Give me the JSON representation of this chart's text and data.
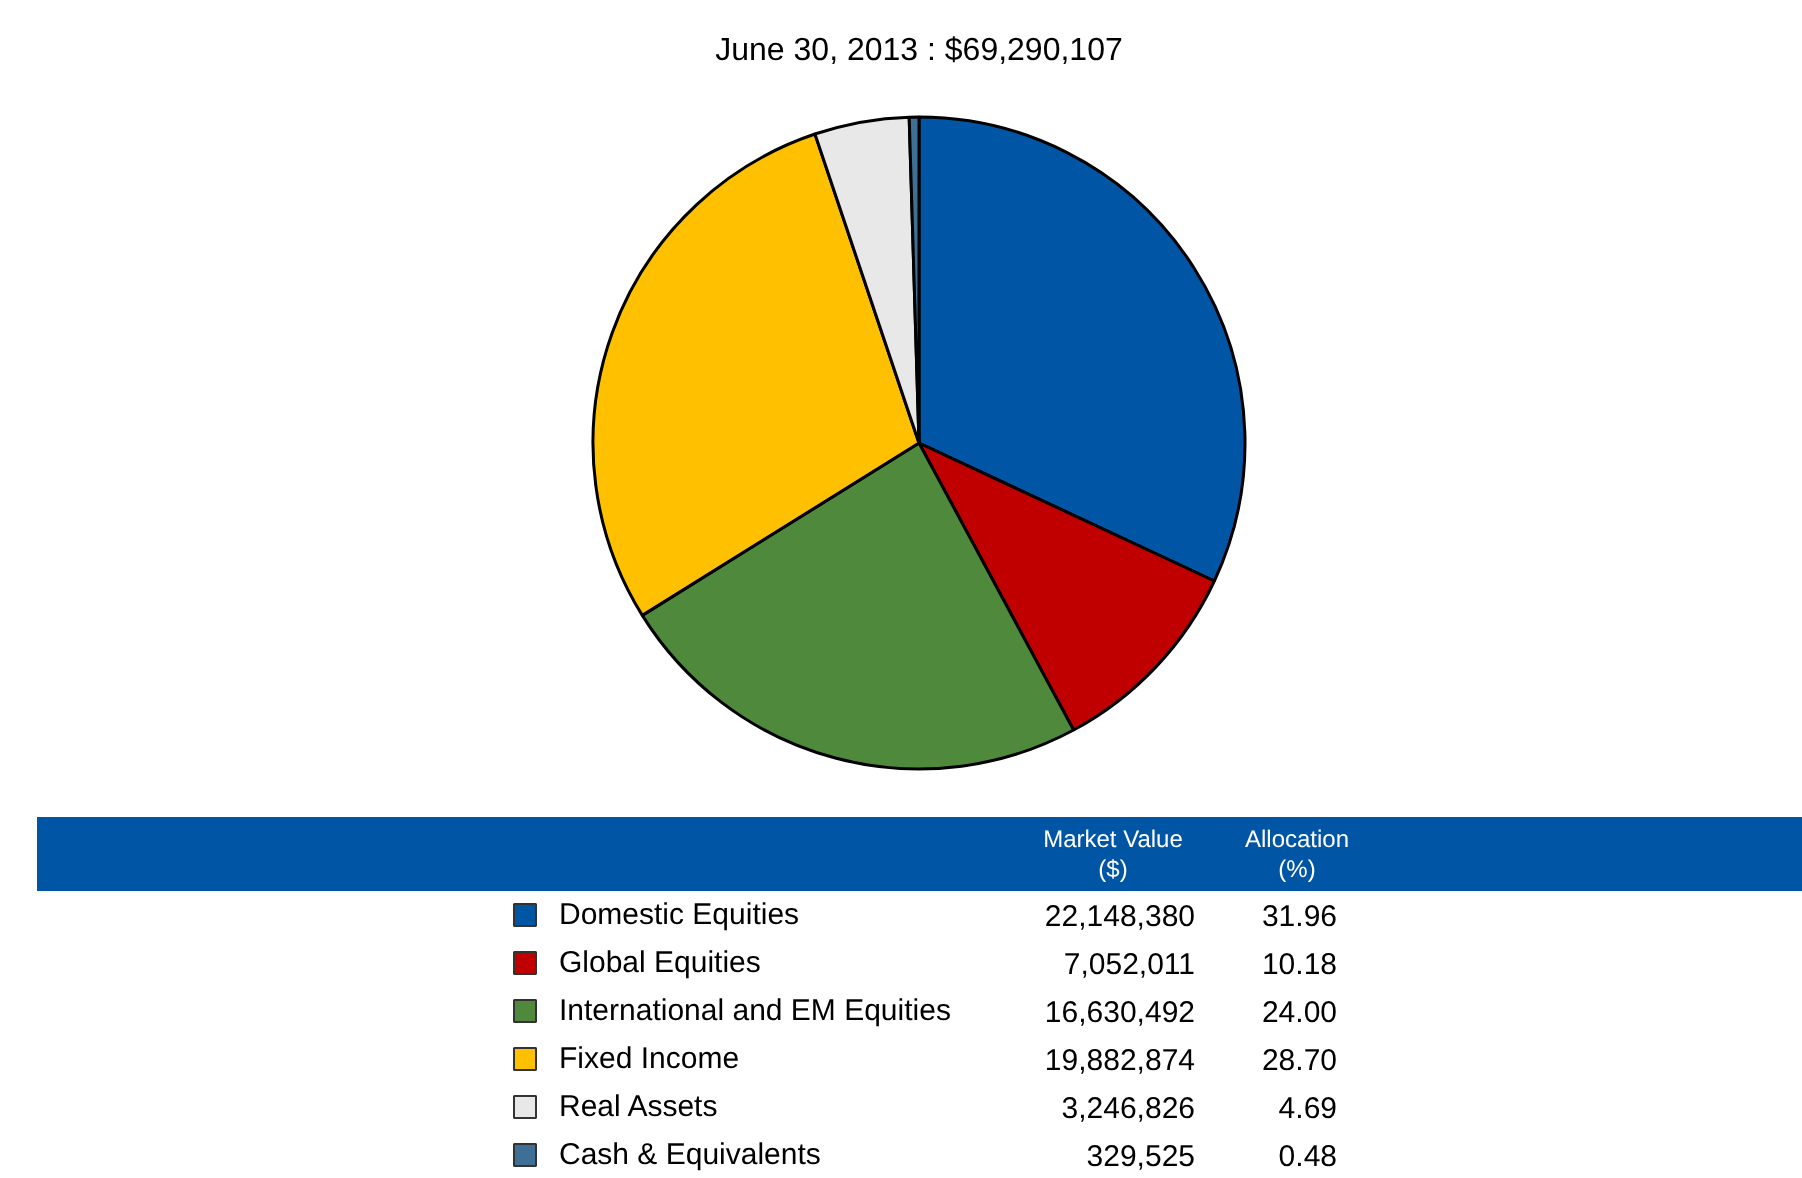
{
  "chart_data": {
    "type": "pie",
    "title": "June 30, 2013 : $69,290,107",
    "categories": [
      "Domestic Equities",
      "Global Equities",
      "International and EM Equities",
      "Fixed Income",
      "Real Assets",
      "Cash & Equivalents"
    ],
    "colors": [
      "#0055a5",
      "#c00000",
      "#4f8a3c",
      "#ffc000",
      "#e8e8e8",
      "#3f6f94"
    ],
    "values": [
      31.96,
      10.18,
      24.0,
      28.7,
      4.69,
      0.48
    ],
    "value_labels": [
      "31.96",
      "10.18",
      "24.00",
      "28.70",
      "4.69",
      "0.48"
    ],
    "annotations": [
      "Market Value\n($)",
      "Allocation\n(%)",
      "22,148,380",
      "7,052,011",
      "16,630,492",
      "19,882,874",
      "3,246,826",
      "329,525"
    ],
    "legend": "bottom"
  }
}
